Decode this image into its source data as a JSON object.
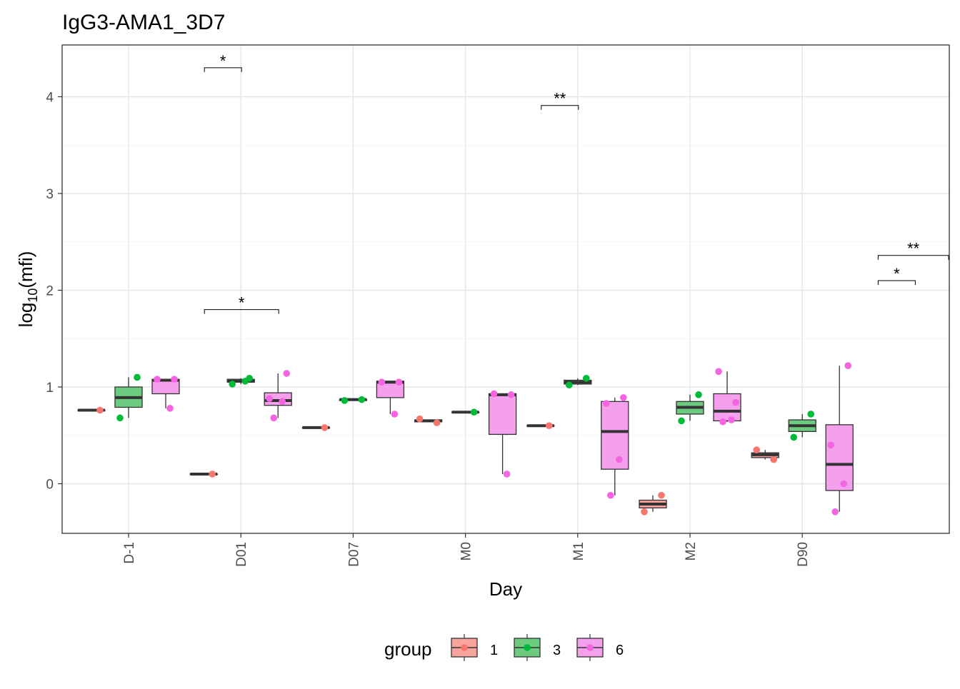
{
  "chart_data": {
    "type": "box",
    "title": "IgG3-AMA1_3D7",
    "xlabel": "Day",
    "ylabel": {
      "base": "log",
      "subscript": "10",
      "rest": "(mfi)"
    },
    "categories": [
      "D-1",
      "D01",
      "D07",
      "M0",
      "M1",
      "M2",
      "D90"
    ],
    "ylim": [
      -0.5,
      4.5
    ],
    "yticks": [
      0,
      1,
      2,
      3,
      4
    ],
    "grid": true,
    "legend": {
      "title": "group",
      "position": "bottom",
      "entries": [
        {
          "label": "1",
          "fill": "#F8A49C",
          "point": "#F8766D"
        },
        {
          "label": "3",
          "fill": "#6CCB7E",
          "point": "#00BA38"
        },
        {
          "label": "6",
          "fill": "#F5A0EC",
          "point": "#F564E3"
        }
      ]
    },
    "series": [
      {
        "name": "1",
        "boxes": [
          {
            "category": "D-1",
            "min": 0.76,
            "q1": 0.76,
            "median": 0.76,
            "q3": 0.76,
            "max": 0.76
          },
          {
            "category": "D01",
            "min": 0.1,
            "q1": 0.1,
            "median": 0.1,
            "q3": 0.1,
            "max": 0.1
          },
          {
            "category": "D07",
            "min": 0.58,
            "q1": 0.58,
            "median": 0.58,
            "q3": 0.58,
            "max": 0.58
          },
          {
            "category": "M0",
            "min": 0.64,
            "q1": 0.64,
            "median": 0.65,
            "q3": 0.66,
            "max": 0.66
          },
          {
            "category": "M1",
            "min": 0.6,
            "q1": 0.6,
            "median": 0.6,
            "q3": 0.6,
            "max": 0.6
          },
          {
            "category": "M2",
            "min": -0.29,
            "q1": -0.25,
            "median": -0.21,
            "q3": -0.17,
            "max": -0.12
          },
          {
            "category": "D90",
            "min": 0.25,
            "q1": 0.27,
            "median": 0.3,
            "q3": 0.32,
            "max": 0.35
          }
        ],
        "points": [
          {
            "category": "D-1",
            "values": [
              0.76
            ]
          },
          {
            "category": "D01",
            "values": [
              0.1
            ]
          },
          {
            "category": "D07",
            "values": [
              0.58
            ]
          },
          {
            "category": "M0",
            "values": [
              0.63,
              0.67
            ]
          },
          {
            "category": "M1",
            "values": [
              0.6
            ]
          },
          {
            "category": "M2",
            "values": [
              -0.12,
              -0.29
            ]
          },
          {
            "category": "D90",
            "values": [
              0.25,
              0.35
            ]
          }
        ]
      },
      {
        "name": "3",
        "boxes": [
          {
            "category": "D-1",
            "min": 0.68,
            "q1": 0.79,
            "median": 0.89,
            "q3": 1.0,
            "max": 1.1
          },
          {
            "category": "D01",
            "min": 1.03,
            "q1": 1.05,
            "median": 1.06,
            "q3": 1.08,
            "max": 1.09
          },
          {
            "category": "D07",
            "min": 0.86,
            "q1": 0.86,
            "median": 0.87,
            "q3": 0.87,
            "max": 0.87
          },
          {
            "category": "M0",
            "min": 0.74,
            "q1": 0.74,
            "median": 0.74,
            "q3": 0.74,
            "max": 0.74
          },
          {
            "category": "M1",
            "min": 1.02,
            "q1": 1.03,
            "median": 1.05,
            "q3": 1.07,
            "max": 1.09
          },
          {
            "category": "M2",
            "min": 0.65,
            "q1": 0.72,
            "median": 0.79,
            "q3": 0.85,
            "max": 0.92
          },
          {
            "category": "D90",
            "min": 0.48,
            "q1": 0.54,
            "median": 0.6,
            "q3": 0.66,
            "max": 0.72
          }
        ],
        "points": [
          {
            "category": "D-1",
            "values": [
              1.1,
              0.68
            ]
          },
          {
            "category": "D01",
            "values": [
              1.09,
              1.03,
              1.06
            ]
          },
          {
            "category": "D07",
            "values": [
              0.87,
              0.86
            ]
          },
          {
            "category": "M0",
            "values": [
              0.74
            ]
          },
          {
            "category": "M1",
            "values": [
              1.09,
              1.02
            ]
          },
          {
            "category": "M2",
            "values": [
              0.92,
              0.65
            ]
          },
          {
            "category": "D90",
            "values": [
              0.72,
              0.48
            ]
          }
        ]
      },
      {
        "name": "6",
        "boxes": [
          {
            "category": "D-1",
            "min": 0.78,
            "q1": 0.93,
            "median": 1.07,
            "q3": 1.08,
            "max": 1.08
          },
          {
            "category": "D01",
            "min": 0.68,
            "q1": 0.81,
            "median": 0.86,
            "q3": 0.94,
            "max": 1.14
          },
          {
            "category": "D07",
            "min": 0.72,
            "q1": 0.89,
            "median": 1.05,
            "q3": 1.06,
            "max": 1.06
          },
          {
            "category": "M0",
            "min": 0.1,
            "q1": 0.51,
            "median": 0.92,
            "q3": 0.93,
            "max": 0.93
          },
          {
            "category": "M1",
            "min": -0.12,
            "q1": 0.15,
            "median": 0.54,
            "q3": 0.85,
            "max": 0.89
          },
          {
            "category": "M2",
            "min": 0.64,
            "q1": 0.65,
            "median": 0.75,
            "q3": 0.93,
            "max": 1.16
          },
          {
            "category": "D90",
            "min": -0.29,
            "q1": -0.07,
            "median": 0.2,
            "q3": 0.61,
            "max": 1.22
          }
        ],
        "points": [
          {
            "category": "D-1",
            "values": [
              1.08,
              1.08,
              0.78
            ]
          },
          {
            "category": "D01",
            "values": [
              1.14,
              0.88,
              0.85,
              0.68
            ]
          },
          {
            "category": "D07",
            "values": [
              1.05,
              1.05,
              0.72
            ]
          },
          {
            "category": "M0",
            "values": [
              0.92,
              0.93,
              0.1
            ]
          },
          {
            "category": "M1",
            "values": [
              0.89,
              0.83,
              0.25,
              -0.12
            ]
          },
          {
            "category": "M2",
            "values": [
              0.84,
              1.16,
              0.66,
              0.64
            ]
          },
          {
            "category": "D90",
            "values": [
              1.22,
              0.4,
              0.0,
              -0.29
            ]
          }
        ]
      }
    ],
    "annotations": [
      {
        "label": "*",
        "y": 4.3,
        "from": "D01",
        "from_group": "1",
        "to": "D01",
        "to_group": "3"
      },
      {
        "label": "*",
        "y": 1.8,
        "from": "D01",
        "from_group": "1",
        "to": "D01",
        "to_group": "6"
      },
      {
        "label": "**",
        "y": 3.91,
        "from": "M1",
        "from_group": "1",
        "to": "M1",
        "to_group": "3"
      },
      {
        "label": "*",
        "y": 2.1,
        "from": "D90+",
        "from_group": "1",
        "to": "D90+",
        "to_group": "3"
      },
      {
        "label": "**",
        "y": 2.36,
        "from": "D90+",
        "from_group": "1",
        "to": "D90+",
        "to_group": "6"
      }
    ]
  }
}
